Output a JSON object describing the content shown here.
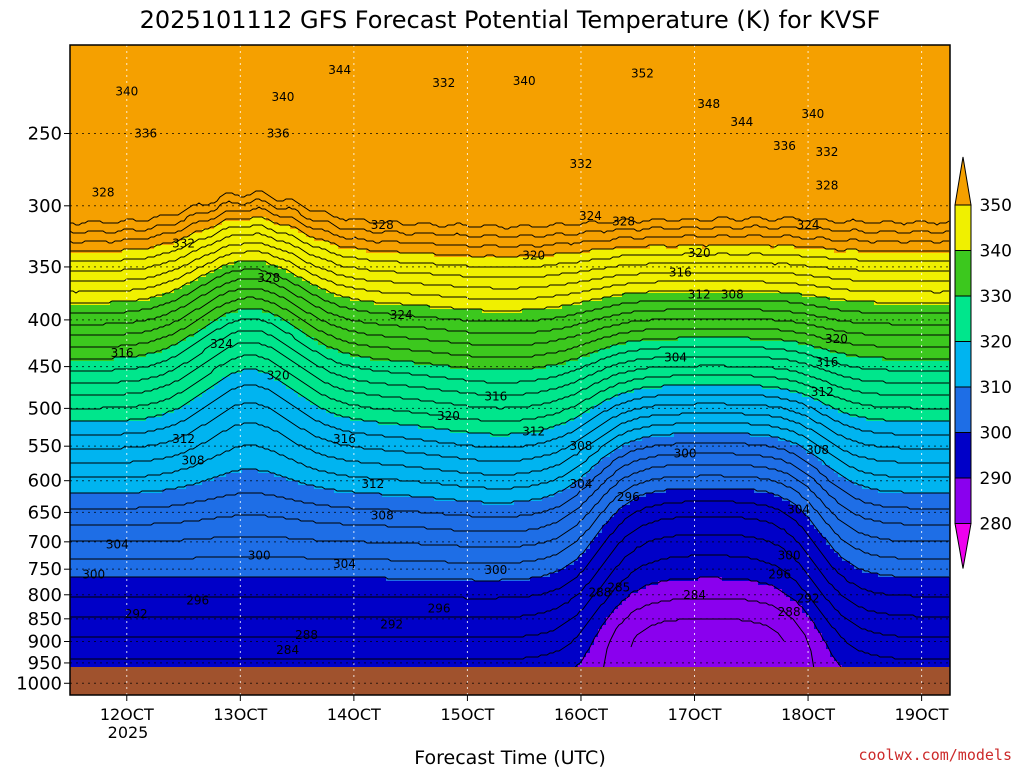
{
  "chart_data": {
    "type": "heatmap",
    "title": "2025101112 GFS Forecast Potential Temperature (K) for KVSF",
    "xlabel": "Forecast Time (UTC)",
    "ylabel": "",
    "x_ticks": [
      "12OCT",
      "13OCT",
      "14OCT",
      "15OCT",
      "16OCT",
      "17OCT",
      "18OCT",
      "19OCT"
    ],
    "x_ticks_hours": [
      12,
      36,
      60,
      84,
      108,
      132,
      156,
      180
    ],
    "x_year_label": "2025",
    "xlim": [
      0,
      186
    ],
    "y_ticks": [
      250,
      300,
      350,
      400,
      450,
      500,
      550,
      600,
      650,
      700,
      750,
      800,
      850,
      900,
      950,
      1000
    ],
    "ylim": [
      200,
      1030
    ],
    "y_log": true,
    "grid": true,
    "colorbar": {
      "levels": [
        280,
        290,
        300,
        310,
        320,
        330,
        340,
        350
      ],
      "colors": [
        "#ee00ee",
        "#8a00ee",
        "#0000c8",
        "#1e6ee6",
        "#00b4f0",
        "#00e68c",
        "#3cc81e",
        "#f0f000",
        "#f5a000"
      ],
      "placement": "right"
    },
    "ground_color": "#a0522d",
    "contour_labels": [
      {
        "x": 12,
        "p": 225,
        "v": "340"
      },
      {
        "x": 16,
        "p": 250,
        "v": "336"
      },
      {
        "x": 7,
        "p": 290,
        "v": "328"
      },
      {
        "x": 24,
        "p": 330,
        "v": "332"
      },
      {
        "x": 45,
        "p": 228,
        "v": "340"
      },
      {
        "x": 44,
        "p": 250,
        "v": "336"
      },
      {
        "x": 57,
        "p": 213,
        "v": "344"
      },
      {
        "x": 79,
        "p": 220,
        "v": "332"
      },
      {
        "x": 96,
        "p": 219,
        "v": "340"
      },
      {
        "x": 66,
        "p": 315,
        "v": "328"
      },
      {
        "x": 42,
        "p": 360,
        "v": "328"
      },
      {
        "x": 32,
        "p": 425,
        "v": "324"
      },
      {
        "x": 70,
        "p": 395,
        "v": "324"
      },
      {
        "x": 44,
        "p": 460,
        "v": "320"
      },
      {
        "x": 98,
        "p": 340,
        "v": "320"
      },
      {
        "x": 11,
        "p": 435,
        "v": "316"
      },
      {
        "x": 90,
        "p": 485,
        "v": "316"
      },
      {
        "x": 80,
        "p": 510,
        "v": "320"
      },
      {
        "x": 58,
        "p": 540,
        "v": "316"
      },
      {
        "x": 98,
        "p": 530,
        "v": "312"
      },
      {
        "x": 24,
        "p": 540,
        "v": "312"
      },
      {
        "x": 26,
        "p": 570,
        "v": "308"
      },
      {
        "x": 64,
        "p": 605,
        "v": "312"
      },
      {
        "x": 66,
        "p": 655,
        "v": "308"
      },
      {
        "x": 108,
        "p": 550,
        "v": "308"
      },
      {
        "x": 108,
        "p": 605,
        "v": "304"
      },
      {
        "x": 118,
        "p": 625,
        "v": "296"
      },
      {
        "x": 128,
        "p": 440,
        "v": "304"
      },
      {
        "x": 130,
        "p": 560,
        "v": "300"
      },
      {
        "x": 110,
        "p": 308,
        "v": "324"
      },
      {
        "x": 117,
        "p": 312,
        "v": "328"
      },
      {
        "x": 108,
        "p": 270,
        "v": "332"
      },
      {
        "x": 121,
        "p": 215,
        "v": "352"
      },
      {
        "x": 135,
        "p": 232,
        "v": "348"
      },
      {
        "x": 142,
        "p": 243,
        "v": "344"
      },
      {
        "x": 157,
        "p": 238,
        "v": "340"
      },
      {
        "x": 151,
        "p": 258,
        "v": "336"
      },
      {
        "x": 160,
        "p": 262,
        "v": "332"
      },
      {
        "x": 160,
        "p": 285,
        "v": "328"
      },
      {
        "x": 156,
        "p": 315,
        "v": "324"
      },
      {
        "x": 133,
        "p": 338,
        "v": "320"
      },
      {
        "x": 129,
        "p": 355,
        "v": "316"
      },
      {
        "x": 133,
        "p": 375,
        "v": "312"
      },
      {
        "x": 140,
        "p": 375,
        "v": "308"
      },
      {
        "x": 162,
        "p": 420,
        "v": "320"
      },
      {
        "x": 160,
        "p": 445,
        "v": "316"
      },
      {
        "x": 159,
        "p": 480,
        "v": "312"
      },
      {
        "x": 158,
        "p": 555,
        "v": "308"
      },
      {
        "x": 154,
        "p": 645,
        "v": "304"
      },
      {
        "x": 152,
        "p": 725,
        "v": "300"
      },
      {
        "x": 150,
        "p": 760,
        "v": "296"
      },
      {
        "x": 156,
        "p": 808,
        "v": "292"
      },
      {
        "x": 152,
        "p": 835,
        "v": "288"
      },
      {
        "x": 132,
        "p": 800,
        "v": "284"
      },
      {
        "x": 112,
        "p": 795,
        "v": "288"
      },
      {
        "x": 116,
        "p": 785,
        "v": "285"
      },
      {
        "x": 90,
        "p": 752,
        "v": "300"
      },
      {
        "x": 78,
        "p": 828,
        "v": "296"
      },
      {
        "x": 68,
        "p": 862,
        "v": "292"
      },
      {
        "x": 50,
        "p": 885,
        "v": "288"
      },
      {
        "x": 46,
        "p": 920,
        "v": "284"
      },
      {
        "x": 27,
        "p": 812,
        "v": "296"
      },
      {
        "x": 14,
        "p": 840,
        "v": "292"
      },
      {
        "x": 5,
        "p": 760,
        "v": "300"
      },
      {
        "x": 10,
        "p": 705,
        "v": "304"
      },
      {
        "x": 40,
        "p": 725,
        "v": "300"
      },
      {
        "x": 58,
        "p": 740,
        "v": "304"
      }
    ],
    "credit": "coolwx.com/models"
  }
}
